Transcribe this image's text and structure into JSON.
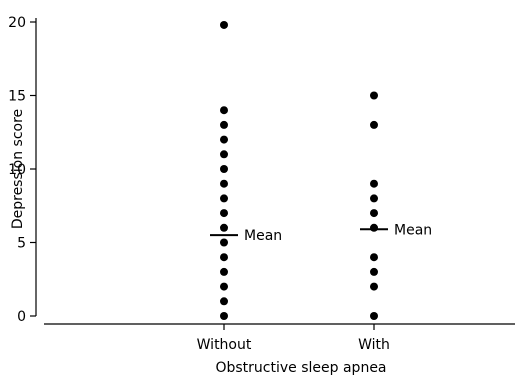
{
  "chart_data": {
    "type": "scatter",
    "title": "",
    "xlabel": "Obstructive sleep apnea",
    "ylabel": "Depression score",
    "categories": [
      "Without",
      "With"
    ],
    "ylim": [
      0,
      20
    ],
    "yticks": [
      0,
      5,
      10,
      15,
      20
    ],
    "grid": false,
    "legend": "none",
    "series": [
      {
        "category": "Without",
        "values": [
          0,
          1,
          2,
          3,
          4,
          5,
          6,
          7,
          8,
          9,
          10,
          11,
          12,
          13,
          14,
          19.8
        ],
        "mean": 5.5
      },
      {
        "category": "With",
        "values": [
          0,
          2,
          3,
          4,
          6,
          7,
          8,
          9,
          13,
          15
        ],
        "mean": 5.9
      }
    ],
    "annotations": [
      {
        "text": "Mean",
        "category": "Without",
        "y": 5.5
      },
      {
        "text": "Mean",
        "category": "With",
        "y": 5.9
      }
    ],
    "colors": {
      "points": "#000000",
      "axes": "#000000"
    }
  }
}
